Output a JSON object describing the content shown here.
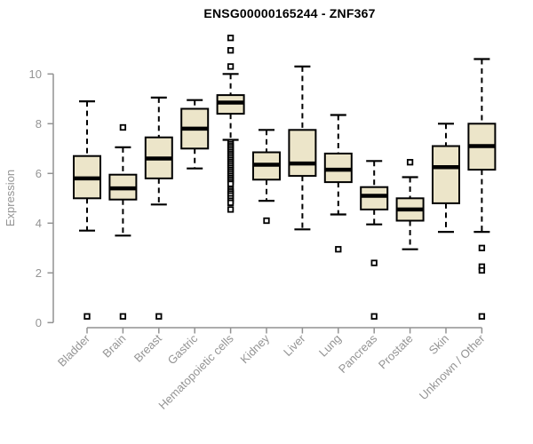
{
  "title": "ENSG00000165244 - ZNF367",
  "chart_data": {
    "type": "boxplot",
    "title": "ENSG00000165244 - ZNF367",
    "xlabel": "",
    "ylabel": "Expression",
    "yticks": [
      0,
      2,
      4,
      6,
      8,
      10
    ],
    "ylim": [
      0,
      11.6
    ],
    "grid": false,
    "legend": "none",
    "categories": [
      "Bladder",
      "Brain",
      "Breast",
      "Gastric",
      "Hematopoietic cells",
      "Kidney",
      "Liver",
      "Lung",
      "Pancreas",
      "Prostate",
      "Skin",
      "Unknown / Other"
    ],
    "series": [
      {
        "name": "Bladder",
        "low": 3.7,
        "q1": 5.0,
        "median": 5.8,
        "q3": 6.7,
        "high": 8.9,
        "outliers": [
          0.25
        ]
      },
      {
        "name": "Brain",
        "low": 3.5,
        "q1": 4.95,
        "median": 5.4,
        "q3": 5.95,
        "high": 7.05,
        "outliers": [
          7.85,
          0.25
        ]
      },
      {
        "name": "Breast",
        "low": 4.75,
        "q1": 5.8,
        "median": 6.6,
        "q3": 7.45,
        "high": 9.05,
        "outliers": [
          0.25
        ]
      },
      {
        "name": "Gastric",
        "low": 6.2,
        "q1": 7.0,
        "median": 7.8,
        "q3": 8.6,
        "high": 8.95,
        "outliers": []
      },
      {
        "name": "Hematopoietic cells",
        "low": 7.35,
        "q1": 8.4,
        "median": 8.85,
        "q3": 9.15,
        "high": 10.0,
        "outliers": [
          11.45,
          10.95,
          10.3,
          7.25,
          7.17,
          7.09,
          7.01,
          6.93,
          6.85,
          6.77,
          6.69,
          6.61,
          6.53,
          6.45,
          6.37,
          6.29,
          6.21,
          6.13,
          6.05,
          5.97,
          5.89,
          5.81,
          5.73,
          5.65,
          5.58,
          5.35,
          5.27,
          5.19,
          5.11,
          5.0,
          4.9,
          4.82,
          4.55
        ]
      },
      {
        "name": "Kidney",
        "low": 4.9,
        "q1": 5.75,
        "median": 6.35,
        "q3": 6.85,
        "high": 7.75,
        "outliers": [
          4.1
        ]
      },
      {
        "name": "Liver",
        "low": 3.75,
        "q1": 5.9,
        "median": 6.4,
        "q3": 7.75,
        "high": 10.3,
        "outliers": []
      },
      {
        "name": "Lung",
        "low": 4.35,
        "q1": 5.65,
        "median": 6.15,
        "q3": 6.8,
        "high": 8.35,
        "outliers": [
          2.95
        ]
      },
      {
        "name": "Pancreas",
        "low": 3.95,
        "q1": 4.55,
        "median": 5.1,
        "q3": 5.45,
        "high": 6.5,
        "outliers": [
          2.4,
          0.25
        ]
      },
      {
        "name": "Prostate",
        "low": 2.95,
        "q1": 4.1,
        "median": 4.55,
        "q3": 5.0,
        "high": 5.85,
        "outliers": [
          6.45
        ]
      },
      {
        "name": "Skin",
        "low": 3.65,
        "q1": 4.8,
        "median": 6.25,
        "q3": 7.1,
        "high": 8.0,
        "outliers": []
      },
      {
        "name": "Unknown / Other",
        "low": 3.65,
        "q1": 6.15,
        "median": 7.1,
        "q3": 8.0,
        "high": 10.6,
        "outliers": [
          3.0,
          2.25,
          2.1,
          0.25
        ]
      }
    ],
    "colors": {
      "box_fill": "#ECE5C9",
      "box_border": "#000000",
      "median": "#000000",
      "outlier_fill": "#ffffff",
      "axis": "#929292",
      "label": "#949494",
      "title": "#000000",
      "background": "#ffffff"
    }
  }
}
